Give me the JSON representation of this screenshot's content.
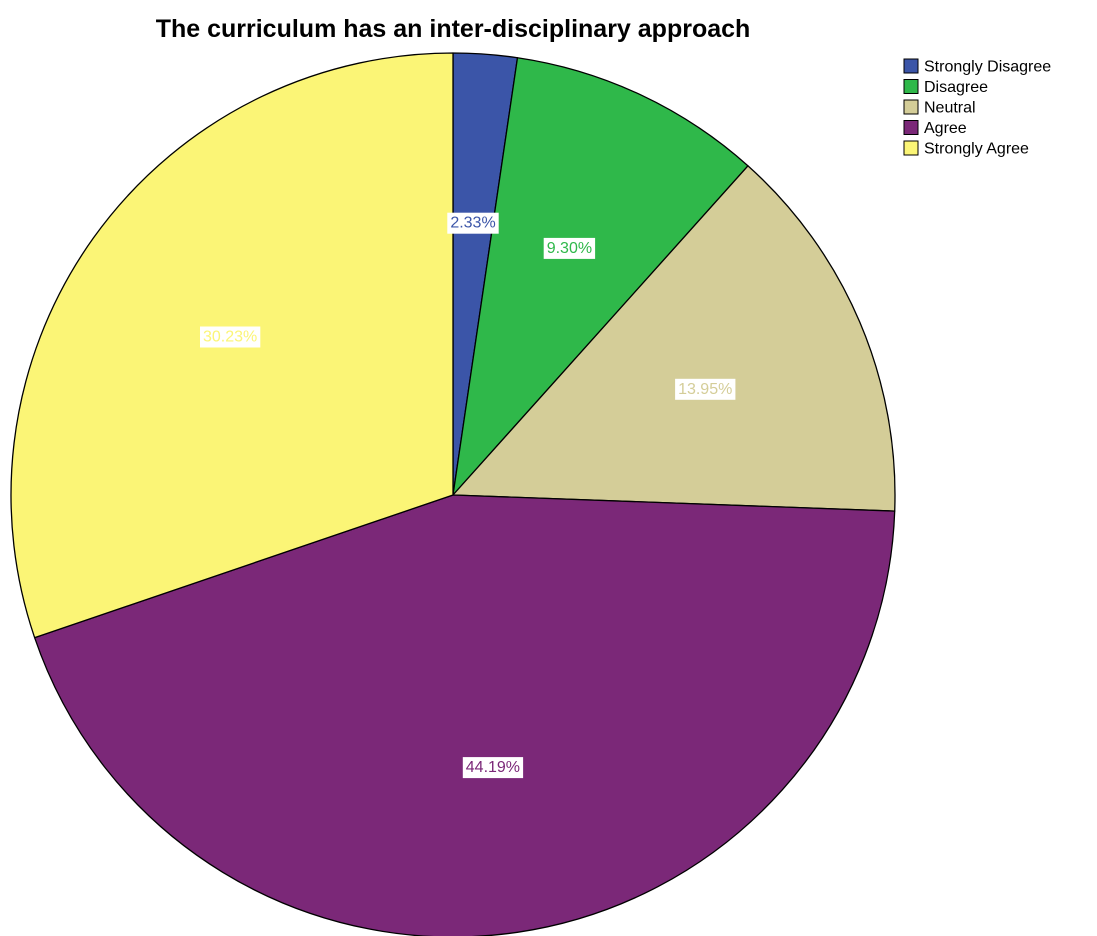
{
  "chart_data": {
    "type": "pie",
    "title": "The curriculum has an inter-disciplinary approach",
    "categories": [
      "Strongly Disagree",
      "Disagree",
      "Neutral",
      "Agree",
      "Strongly Agree"
    ],
    "values": [
      2.33,
      9.3,
      13.95,
      44.19,
      30.23
    ],
    "data_labels": [
      "2.33%",
      "9.30%",
      "13.95%",
      "44.19%",
      "30.23%"
    ],
    "colors": [
      "#3b55a8",
      "#2fb84a",
      "#d4cd98",
      "#7b2878",
      "#fbf576"
    ],
    "slice_border_color": "#000000",
    "start_angle": "12 o'clock",
    "direction": "clockwise",
    "legend_placement": "top-right"
  }
}
